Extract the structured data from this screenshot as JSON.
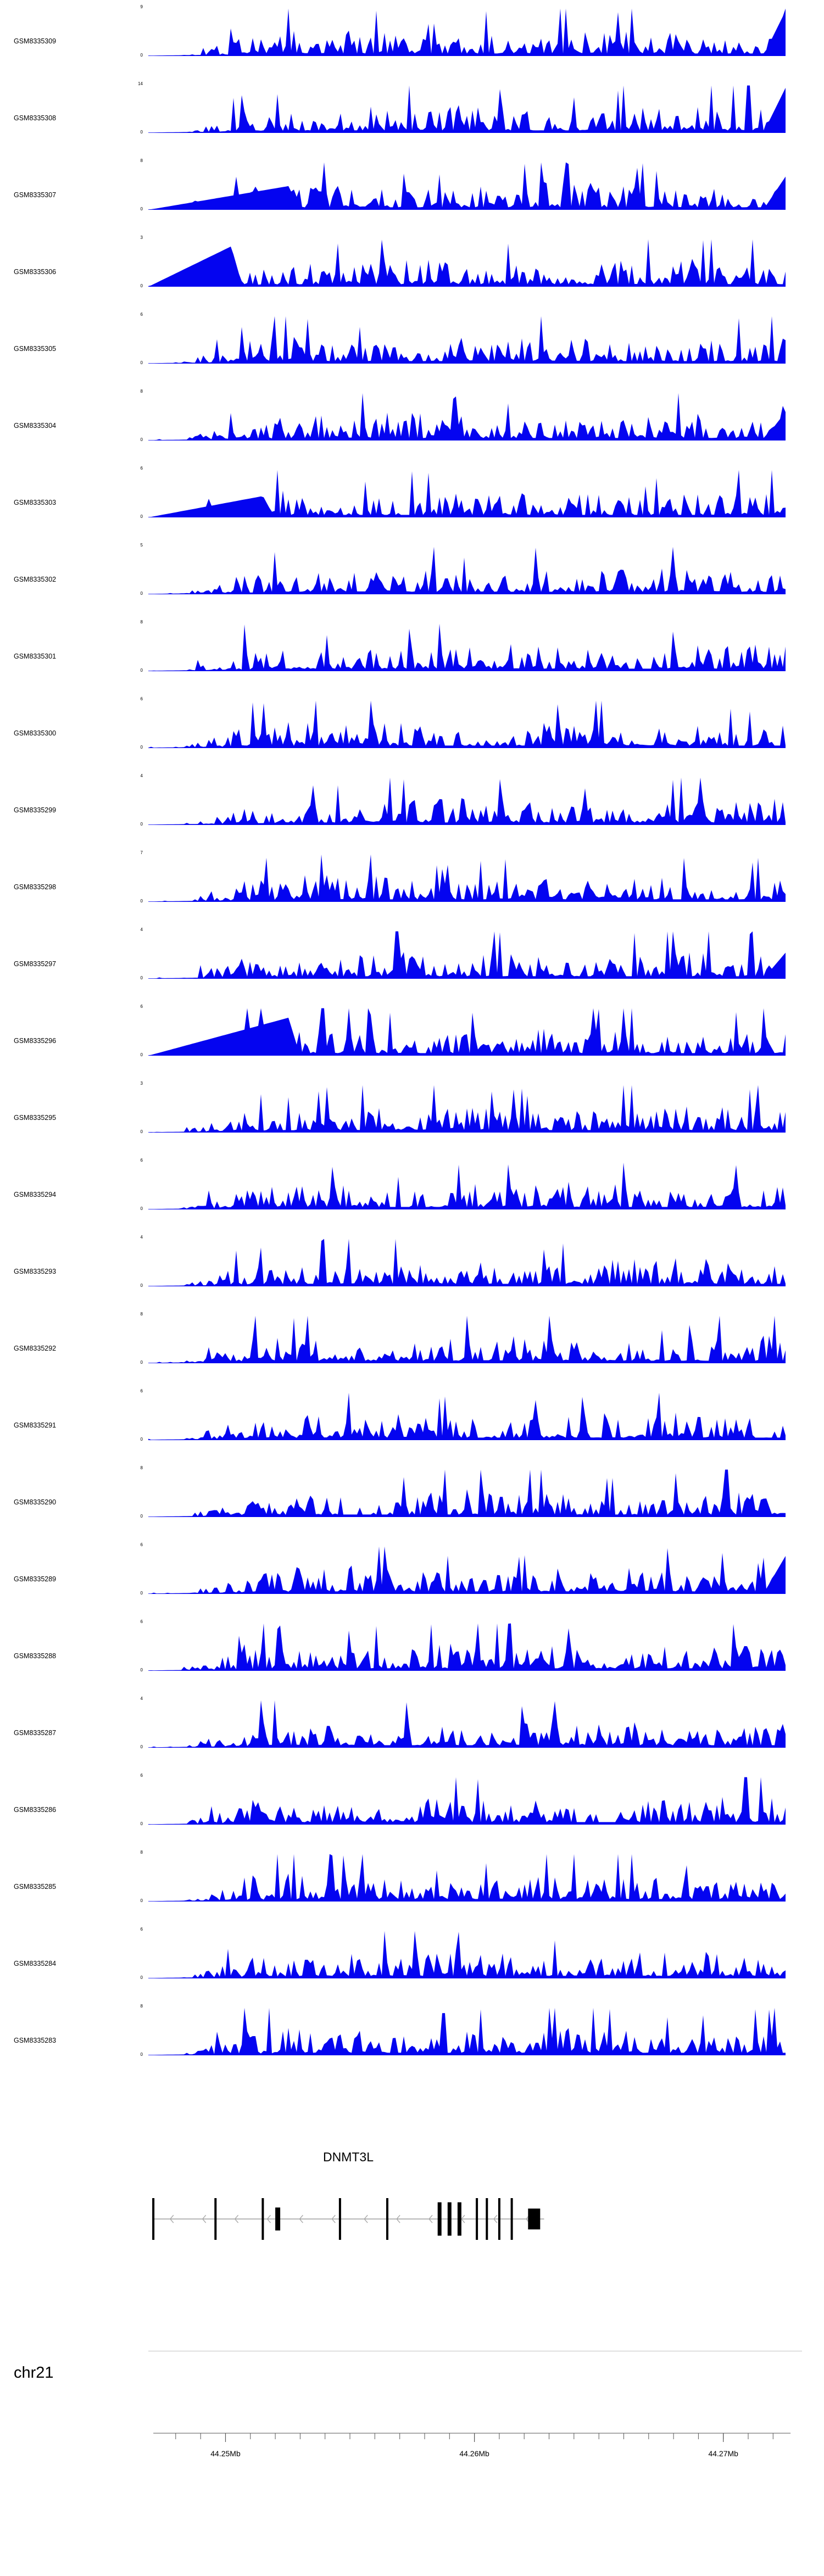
{
  "figure": {
    "chromosome_label": "chr21",
    "gene_track": {
      "gene_name": "DNMT3L",
      "strand": "-",
      "arrow_step_mb": 0.0013,
      "exons": [
        {
          "mb": 44.2471,
          "w": 4,
          "h": 1.0
        },
        {
          "mb": 44.2496,
          "w": 4,
          "h": 1.0
        },
        {
          "mb": 44.2515,
          "w": 4,
          "h": 1.0
        },
        {
          "mb": 44.2521,
          "w": 9,
          "h": 0.55
        },
        {
          "mb": 44.2546,
          "w": 4,
          "h": 1.0
        },
        {
          "mb": 44.2565,
          "w": 4,
          "h": 1.0
        },
        {
          "mb": 44.2586,
          "w": 7,
          "h": 0.8
        },
        {
          "mb": 44.259,
          "w": 7,
          "h": 0.8
        },
        {
          "mb": 44.2594,
          "w": 7,
          "h": 0.8
        },
        {
          "mb": 44.2601,
          "w": 4,
          "h": 1.0
        },
        {
          "mb": 44.2605,
          "w": 4,
          "h": 1.0
        },
        {
          "mb": 44.261,
          "w": 4,
          "h": 1.0
        },
        {
          "mb": 44.2615,
          "w": 4,
          "h": 1.0
        },
        {
          "mb": 44.2624,
          "w": 22,
          "h": 0.5
        }
      ]
    },
    "axis": {
      "mb_start": 44.2471,
      "mb_end": 44.2727,
      "minor_tick_start_mb": 44.248,
      "minor_tick_step_mb": 0.001,
      "minor_tick_count": 25,
      "major_ticks": [
        {
          "mb": 44.25,
          "label": "44.25Mb"
        },
        {
          "mb": 44.26,
          "label": "44.26Mb"
        },
        {
          "mb": 44.27,
          "label": "44.27Mb"
        }
      ]
    }
  },
  "chart_data": {
    "type": "area",
    "title": "",
    "color": "#0404f0",
    "x_range_mb": [
      44.2469,
      44.2725
    ],
    "x_tick_labels": [
      "44.25Mb",
      "44.26Mb",
      "44.27Mb"
    ],
    "ylabel": "",
    "tracks": [
      {
        "name": "GSM8335309",
        "ymin": 0,
        "ymax": 9,
        "seed": 11,
        "wedge_h": 0,
        "wedge_peak": 0,
        "right_spike_h": 0.95
      },
      {
        "name": "GSM8335308",
        "ymin": 0,
        "ymax": 14,
        "seed": 12,
        "wedge_h": 0,
        "wedge_peak": 0,
        "right_spike_h": 0.95
      },
      {
        "name": "GSM8335307",
        "ymin": 0,
        "ymax": 8,
        "seed": 13,
        "wedge_h": 0.5,
        "wedge_peak": 0.22,
        "right_spike_h": 0.7
      },
      {
        "name": "GSM8335306",
        "ymin": 0,
        "ymax": 3,
        "seed": 14,
        "wedge_h": 0.85,
        "wedge_peak": 0.13,
        "right_spike_h": 0
      },
      {
        "name": "GSM8335305",
        "ymin": 0,
        "ymax": 6,
        "seed": 15,
        "wedge_h": 0,
        "wedge_peak": 0,
        "right_spike_h": 0
      },
      {
        "name": "GSM8335304",
        "ymin": 0,
        "ymax": 8,
        "seed": 16,
        "wedge_h": 0,
        "wedge_peak": 0,
        "right_spike_h": 0.6
      },
      {
        "name": "GSM8335303",
        "ymin": 0,
        "ymax": 6,
        "seed": 17,
        "wedge_h": 0.45,
        "wedge_peak": 0.18,
        "right_spike_h": 0
      },
      {
        "name": "GSM8335302",
        "ymin": 0,
        "ymax": 5,
        "seed": 18,
        "wedge_h": 0,
        "wedge_peak": 0,
        "right_spike_h": 0
      },
      {
        "name": "GSM8335301",
        "ymin": 0,
        "ymax": 8,
        "seed": 19,
        "wedge_h": 0,
        "wedge_peak": 0,
        "right_spike_h": 0
      },
      {
        "name": "GSM8335300",
        "ymin": 0,
        "ymax": 6,
        "seed": 20,
        "wedge_h": 0,
        "wedge_peak": 0,
        "right_spike_h": 0
      },
      {
        "name": "GSM8335299",
        "ymin": 0,
        "ymax": 4,
        "seed": 21,
        "wedge_h": 0,
        "wedge_peak": 0,
        "right_spike_h": 0
      },
      {
        "name": "GSM8335298",
        "ymin": 0,
        "ymax": 7,
        "seed": 22,
        "wedge_h": 0,
        "wedge_peak": 0,
        "right_spike_h": 0
      },
      {
        "name": "GSM8335297",
        "ymin": 0,
        "ymax": 4,
        "seed": 23,
        "wedge_h": 0,
        "wedge_peak": 0,
        "right_spike_h": 0.55
      },
      {
        "name": "GSM8335296",
        "ymin": 0,
        "ymax": 6,
        "seed": 24,
        "wedge_h": 0.8,
        "wedge_peak": 0.22,
        "right_spike_h": 0
      },
      {
        "name": "GSM8335295",
        "ymin": 0,
        "ymax": 3,
        "seed": 25,
        "wedge_h": 0,
        "wedge_peak": 0,
        "right_spike_h": 0
      },
      {
        "name": "GSM8335294",
        "ymin": 0,
        "ymax": 6,
        "seed": 26,
        "wedge_h": 0,
        "wedge_peak": 0,
        "right_spike_h": 0
      },
      {
        "name": "GSM8335293",
        "ymin": 0,
        "ymax": 4,
        "seed": 27,
        "wedge_h": 0,
        "wedge_peak": 0,
        "right_spike_h": 0
      },
      {
        "name": "GSM8335292",
        "ymin": 0,
        "ymax": 8,
        "seed": 28,
        "wedge_h": 0,
        "wedge_peak": 0,
        "right_spike_h": 0
      },
      {
        "name": "GSM8335291",
        "ymin": 0,
        "ymax": 6,
        "seed": 29,
        "wedge_h": 0,
        "wedge_peak": 0,
        "right_spike_h": 0
      },
      {
        "name": "GSM8335290",
        "ymin": 0,
        "ymax": 8,
        "seed": 30,
        "wedge_h": 0,
        "wedge_peak": 0,
        "right_spike_h": 0
      },
      {
        "name": "GSM8335289",
        "ymin": 0,
        "ymax": 6,
        "seed": 31,
        "wedge_h": 0,
        "wedge_peak": 0,
        "right_spike_h": 0.8
      },
      {
        "name": "GSM8335288",
        "ymin": 0,
        "ymax": 6,
        "seed": 32,
        "wedge_h": 0,
        "wedge_peak": 0,
        "right_spike_h": 0
      },
      {
        "name": "GSM8335287",
        "ymin": 0,
        "ymax": 4,
        "seed": 33,
        "wedge_h": 0,
        "wedge_peak": 0,
        "right_spike_h": 0
      },
      {
        "name": "GSM8335286",
        "ymin": 0,
        "ymax": 6,
        "seed": 34,
        "wedge_h": 0,
        "wedge_peak": 0,
        "right_spike_h": 0
      },
      {
        "name": "GSM8335285",
        "ymin": 0,
        "ymax": 8,
        "seed": 35,
        "wedge_h": 0,
        "wedge_peak": 0,
        "right_spike_h": 0
      },
      {
        "name": "GSM8335284",
        "ymin": 0,
        "ymax": 6,
        "seed": 36,
        "wedge_h": 0,
        "wedge_peak": 0,
        "right_spike_h": 0
      },
      {
        "name": "GSM8335283",
        "ymin": 0,
        "ymax": 8,
        "seed": 37,
        "wedge_h": 0,
        "wedge_peak": 0,
        "right_spike_h": 0
      }
    ]
  }
}
